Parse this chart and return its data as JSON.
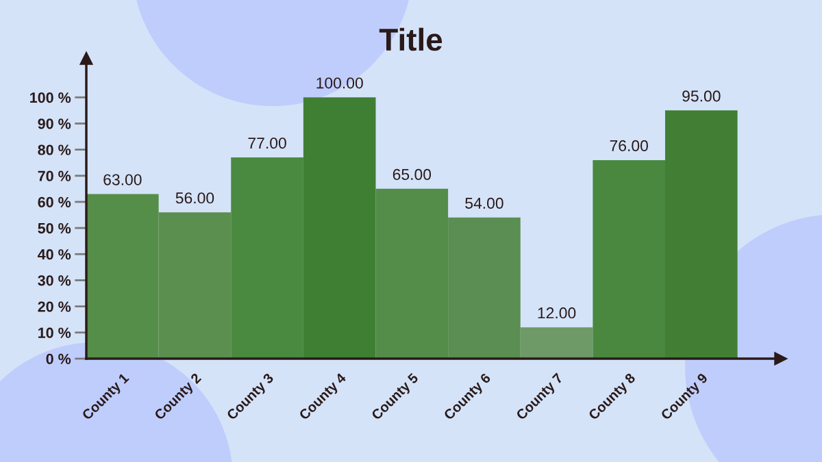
{
  "chart_data": {
    "type": "bar",
    "title": "Title",
    "categories": [
      "County 1",
      "County 2",
      "County 3",
      "County 4",
      "County 5",
      "County 6",
      "County 7",
      "County 8",
      "County 9"
    ],
    "values": [
      63,
      56,
      77,
      100,
      65,
      54,
      12,
      76,
      95
    ],
    "colors": [
      "#558e48",
      "#5a8f50",
      "#4a8940",
      "#3f7f33",
      "#548c4a",
      "#5a8e52",
      "#6e9a68",
      "#4a8840",
      "#427f35"
    ],
    "value_labels": [
      "63.00",
      "56.00",
      "77.00",
      "100.00",
      "65.00",
      "54.00",
      "12.00",
      "76.00",
      "95.00"
    ],
    "ylim": [
      0,
      115
    ],
    "yticks": [
      {
        "value": 0,
        "label": "0 %"
      },
      {
        "value": 10,
        "label": "10 %"
      },
      {
        "value": 20,
        "label": "20 %"
      },
      {
        "value": 30,
        "label": "30 %"
      },
      {
        "value": 40,
        "label": "40 %"
      },
      {
        "value": 50,
        "label": "50 %"
      },
      {
        "value": 60,
        "label": "60 %"
      },
      {
        "value": 70,
        "label": "70 %"
      },
      {
        "value": 80,
        "label": "80 %"
      },
      {
        "value": 90,
        "label": "90 %"
      },
      {
        "value": 100,
        "label": "100 %"
      }
    ]
  }
}
